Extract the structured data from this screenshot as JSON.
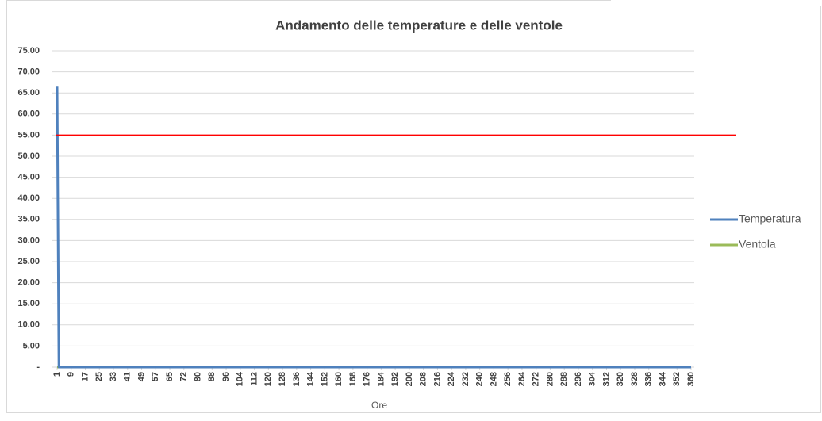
{
  "chart_data": {
    "type": "line",
    "title": "Andamento delle temperature e delle ventole",
    "x_label": "Ore",
    "categories": [
      1,
      null,
      null,
      null,
      null,
      null,
      null,
      null,
      9,
      null,
      null,
      null,
      null,
      null,
      null,
      null,
      17,
      null,
      null,
      null,
      null,
      null,
      null,
      null,
      25,
      null,
      null,
      null,
      null,
      null,
      null,
      null,
      33,
      null,
      null,
      null,
      null,
      null,
      null,
      null,
      41,
      null,
      null,
      null,
      null,
      null,
      null,
      null,
      49,
      null,
      null,
      null,
      null,
      null,
      null,
      null,
      57,
      null,
      null,
      null,
      null,
      null,
      null,
      null,
      65,
      null,
      null,
      null,
      null,
      null,
      null,
      null,
      72,
      null,
      null,
      null,
      null,
      null,
      null,
      null,
      80,
      null,
      null,
      null,
      null,
      null,
      null,
      null,
      88,
      null,
      null,
      null,
      null,
      null,
      null,
      null,
      96,
      null,
      null,
      null,
      null,
      null,
      null,
      null,
      104,
      null,
      null,
      null,
      null,
      null,
      null,
      null,
      112,
      null,
      null,
      null,
      null,
      null,
      null,
      null,
      120,
      null,
      null,
      null,
      null,
      null,
      null,
      null,
      128,
      null,
      null,
      null,
      null,
      null,
      null,
      null,
      136,
      null,
      null,
      null,
      null,
      null,
      null,
      null,
      144,
      null,
      null,
      null,
      null,
      null,
      null,
      null,
      152,
      null,
      null,
      null,
      null,
      null,
      null,
      null,
      160,
      null,
      null,
      null,
      null,
      null,
      null,
      null,
      168,
      null,
      null,
      null,
      null,
      null,
      null,
      null,
      176,
      null,
      null,
      null,
      null,
      null,
      null,
      null,
      184,
      null,
      null,
      null,
      null,
      null,
      null,
      null,
      192,
      null,
      null,
      null,
      null,
      null,
      null,
      null,
      200,
      null,
      null,
      null,
      null,
      null,
      null,
      null,
      208,
      null,
      null,
      null,
      null,
      null,
      null,
      null,
      216,
      null,
      null,
      null,
      null,
      null,
      null,
      null,
      224,
      null,
      null,
      null,
      null,
      null,
      null,
      null,
      232,
      null,
      null,
      null,
      null,
      null,
      null,
      null,
      240,
      null,
      null,
      null,
      null,
      null,
      null,
      null,
      248,
      null,
      null,
      null,
      null,
      null,
      null,
      null,
      256,
      null,
      null,
      null,
      null,
      null,
      null,
      null,
      264,
      null,
      null,
      null,
      null,
      null,
      null,
      null,
      272,
      null,
      null,
      null,
      null,
      null,
      null,
      null,
      280,
      null,
      null,
      null,
      null,
      null,
      null,
      null,
      288,
      null,
      null,
      null,
      null,
      null,
      null,
      null,
      296,
      null,
      null,
      null,
      null,
      null,
      null,
      null,
      304,
      null,
      null,
      null,
      null,
      null,
      null,
      null,
      312,
      null,
      null,
      null,
      null,
      null,
      null,
      null,
      320,
      null,
      null,
      null,
      null,
      null,
      null,
      null,
      328,
      null,
      null,
      null,
      null,
      null,
      null,
      null,
      336,
      null,
      null,
      null,
      null,
      null,
      null,
      null,
      344,
      null,
      null,
      null,
      null,
      null,
      null,
      null,
      352,
      null,
      null,
      null,
      null,
      null,
      null,
      null,
      360
    ],
    "series": [
      {
        "name": "Temperatura",
        "color": "#4f81bd",
        "values": [
          66.5,
          0,
          0,
          0,
          0,
          0,
          0,
          0,
          0,
          0,
          0,
          0,
          0,
          0,
          0,
          0,
          0,
          0,
          0,
          0,
          0,
          0,
          0,
          0,
          0,
          0,
          0,
          0,
          0,
          0,
          0,
          0,
          0,
          0,
          0,
          0,
          0,
          0,
          0,
          0,
          0,
          0,
          0,
          0,
          0,
          0,
          0,
          0,
          0,
          0,
          0,
          0,
          0,
          0,
          0,
          0,
          0,
          0,
          0,
          0,
          0,
          0,
          0,
          0,
          0,
          0,
          0,
          0,
          0,
          0,
          0,
          0,
          0,
          0,
          0,
          0,
          0,
          0,
          0,
          0,
          0,
          0,
          0,
          0,
          0,
          0,
          0,
          0,
          0,
          0,
          0,
          0,
          0,
          0,
          0,
          0,
          0,
          0,
          0,
          0,
          0,
          0,
          0,
          0,
          0,
          0,
          0,
          0,
          0,
          0,
          0,
          0,
          0,
          0,
          0,
          0,
          0,
          0,
          0,
          0,
          0,
          0,
          0,
          0,
          0,
          0,
          0,
          0,
          0,
          0,
          0,
          0,
          0,
          0,
          0,
          0,
          0,
          0,
          0,
          0,
          0,
          0,
          0,
          0,
          0,
          0,
          0,
          0,
          0,
          0,
          0,
          0,
          0,
          0,
          0,
          0,
          0,
          0,
          0,
          0,
          0,
          0,
          0,
          0,
          0,
          0,
          0,
          0,
          0,
          0,
          0,
          0,
          0,
          0,
          0,
          0,
          0,
          0,
          0,
          0,
          0,
          0,
          0,
          0,
          0,
          0,
          0,
          0,
          0,
          0,
          0,
          0,
          0,
          0,
          0,
          0,
          0,
          0,
          0,
          0,
          0,
          0,
          0,
          0,
          0,
          0,
          0,
          0,
          0,
          0,
          0,
          0,
          0,
          0,
          0,
          0,
          0,
          0,
          0,
          0,
          0,
          0,
          0,
          0,
          0,
          0,
          0,
          0,
          0,
          0,
          0,
          0,
          0,
          0,
          0,
          0,
          0,
          0,
          0,
          0,
          0,
          0,
          0,
          0,
          0,
          0,
          0,
          0,
          0,
          0,
          0,
          0,
          0,
          0,
          0,
          0,
          0,
          0,
          0,
          0,
          0,
          0,
          0,
          0,
          0,
          0,
          0,
          0,
          0,
          0,
          0,
          0,
          0,
          0,
          0,
          0,
          0,
          0,
          0,
          0,
          0,
          0,
          0,
          0,
          0,
          0,
          0,
          0,
          0,
          0,
          0,
          0,
          0,
          0,
          0,
          0,
          0,
          0,
          0,
          0,
          0,
          0,
          0,
          0,
          0,
          0,
          0,
          0,
          0,
          0,
          0,
          0,
          0,
          0,
          0,
          0,
          0,
          0,
          0,
          0,
          0,
          0,
          0,
          0,
          0,
          0,
          0,
          0,
          0,
          0,
          0,
          0,
          0,
          0,
          0,
          0,
          0,
          0,
          0,
          0,
          0,
          0,
          0,
          0,
          0,
          0,
          0,
          0,
          0,
          0,
          0,
          0,
          0,
          0,
          0,
          0,
          0,
          0,
          0,
          0,
          0
        ]
      },
      {
        "name": "Ventola",
        "color": "#9bbb59",
        "values": [
          0,
          0,
          0,
          0,
          0,
          0,
          0,
          0,
          0,
          0,
          0,
          0,
          0,
          0,
          0,
          0,
          0,
          0,
          0,
          0,
          0,
          0,
          0,
          0,
          0,
          0,
          0,
          0,
          0,
          0,
          0,
          0,
          0,
          0,
          0,
          0,
          0,
          0,
          0,
          0,
          0,
          0,
          0,
          0,
          0,
          0,
          0,
          0,
          0,
          0,
          0,
          0,
          0,
          0,
          0,
          0,
          0,
          0,
          0,
          0,
          0,
          0,
          0,
          0,
          0,
          0,
          0,
          0,
          0,
          0,
          0,
          0,
          0,
          0,
          0,
          0,
          0,
          0,
          0,
          0,
          0,
          0,
          0,
          0,
          0,
          0,
          0,
          0,
          0,
          0,
          0,
          0,
          0,
          0,
          0,
          0,
          0,
          0,
          0,
          0,
          0,
          0,
          0,
          0,
          0,
          0,
          0,
          0,
          0,
          0,
          0,
          0,
          0,
          0,
          0,
          0,
          0,
          0,
          0,
          0,
          0,
          0,
          0,
          0,
          0,
          0,
          0,
          0,
          0,
          0,
          0,
          0,
          0,
          0,
          0,
          0,
          0,
          0,
          0,
          0,
          0,
          0,
          0,
          0,
          0,
          0,
          0,
          0,
          0,
          0,
          0,
          0,
          0,
          0,
          0,
          0,
          0,
          0,
          0,
          0,
          0,
          0,
          0,
          0,
          0,
          0,
          0,
          0,
          0,
          0,
          0,
          0,
          0,
          0,
          0,
          0,
          0,
          0,
          0,
          0,
          0,
          0,
          0,
          0,
          0,
          0,
          0,
          0,
          0,
          0,
          0,
          0,
          0,
          0,
          0,
          0,
          0,
          0,
          0,
          0,
          0,
          0,
          0,
          0,
          0,
          0,
          0,
          0,
          0,
          0,
          0,
          0,
          0,
          0,
          0,
          0,
          0,
          0,
          0,
          0,
          0,
          0,
          0,
          0,
          0,
          0,
          0,
          0,
          0,
          0,
          0,
          0,
          0,
          0,
          0,
          0,
          0,
          0,
          0,
          0,
          0,
          0,
          0,
          0,
          0,
          0,
          0,
          0,
          0,
          0,
          0,
          0,
          0,
          0,
          0,
          0,
          0,
          0,
          0,
          0,
          0,
          0,
          0,
          0,
          0,
          0,
          0,
          0,
          0,
          0,
          0,
          0,
          0,
          0,
          0,
          0,
          0,
          0,
          0,
          0,
          0,
          0,
          0,
          0,
          0,
          0,
          0,
          0,
          0,
          0,
          0,
          0,
          0,
          0,
          0,
          0,
          0,
          0,
          0,
          0,
          0,
          0,
          0,
          0,
          0,
          0,
          0,
          0,
          0,
          0,
          0,
          0,
          0,
          0,
          0,
          0,
          0,
          0,
          0,
          0,
          0,
          0,
          0,
          0,
          0,
          0,
          0,
          0,
          0,
          0,
          0,
          0,
          0,
          0,
          0,
          0,
          0,
          0,
          0,
          0,
          0,
          0,
          0,
          0,
          0,
          0,
          0,
          0,
          0,
          0,
          0,
          0,
          0,
          0,
          0,
          0,
          0,
          0,
          0,
          0,
          0
        ]
      }
    ],
    "threshold": {
      "value": 55,
      "color": "#ff0000"
    },
    "ylim": [
      0,
      75
    ],
    "yticks": [
      {
        "value": 0,
        "label": "-"
      },
      {
        "value": 5,
        "label": "5.00"
      },
      {
        "value": 10,
        "label": "10.00"
      },
      {
        "value": 15,
        "label": "15.00"
      },
      {
        "value": 20,
        "label": "20.00"
      },
      {
        "value": 25,
        "label": "25.00"
      },
      {
        "value": 30,
        "label": "30.00"
      },
      {
        "value": 35,
        "label": "35.00"
      },
      {
        "value": 40,
        "label": "40.00"
      },
      {
        "value": 45,
        "label": "45.00"
      },
      {
        "value": 50,
        "label": "50.00"
      },
      {
        "value": 55,
        "label": "55.00"
      },
      {
        "value": 60,
        "label": "60.00"
      },
      {
        "value": 65,
        "label": "65.00"
      },
      {
        "value": 70,
        "label": "70.00"
      },
      {
        "value": 75,
        "label": "75.00"
      }
    ],
    "grid": true,
    "legend": "right"
  }
}
